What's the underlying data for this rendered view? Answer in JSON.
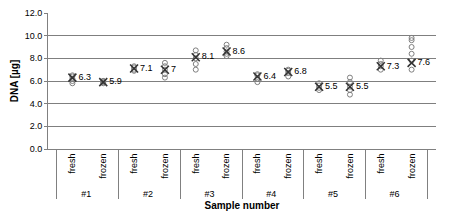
{
  "chart_data": {
    "type": "scatter",
    "x_label": "Sample number",
    "y_label": "DNA [µg]",
    "groups": [
      "#1",
      "#1",
      "#2",
      "#2",
      "#3",
      "#3",
      "#4",
      "#4",
      "#5",
      "#5",
      "#6",
      "#6"
    ],
    "categories": [
      "fresh",
      "frozen",
      "fresh",
      "frozen",
      "fresh",
      "frozen",
      "fresh",
      "frozen",
      "fresh",
      "frozen",
      "fresh",
      "frozen"
    ],
    "series": [
      {
        "marker": "circle-open",
        "color": "#7f7f7f",
        "values": [
          [
            5.8,
            6.0,
            6.2,
            6.4,
            6.5
          ],
          [
            5.8,
            5.9,
            6.0,
            6.0
          ],
          [
            6.9,
            7.0,
            7.2,
            7.3
          ],
          [
            6.3,
            6.6,
            7.0,
            7.3,
            7.6
          ],
          [
            7.0,
            7.5,
            8.0,
            8.3,
            8.7
          ],
          [
            8.2,
            8.4,
            8.6,
            8.9,
            9.2
          ],
          [
            5.9,
            6.2,
            6.5,
            6.6
          ],
          [
            6.4,
            6.7,
            6.9,
            7.0
          ],
          [
            5.2,
            5.4,
            5.6,
            5.8
          ],
          [
            4.8,
            5.2,
            5.5,
            5.9,
            6.3
          ],
          [
            7.0,
            7.3,
            7.5,
            7.8
          ],
          [
            7.0,
            7.8,
            8.4,
            9.0,
            9.6,
            9.8
          ]
        ]
      },
      {
        "marker": "x",
        "color": "#333333",
        "values": [
          6.3,
          5.9,
          7.1,
          7.0,
          8.1,
          8.6,
          6.4,
          6.8,
          5.5,
          5.5,
          7.3,
          7.6
        ]
      }
    ],
    "data_labels": true,
    "ylim": [
      0,
      12
    ],
    "yticks": [
      {
        "value": 0,
        "label": "0.0"
      },
      {
        "value": 2,
        "label": "2.0"
      },
      {
        "value": 4,
        "label": "4.0"
      },
      {
        "value": 6,
        "label": "6.0"
      },
      {
        "value": 8,
        "label": "8.0"
      },
      {
        "value": 10,
        "label": "10.0"
      },
      {
        "value": 12,
        "label": "12.0"
      }
    ],
    "grid": true
  }
}
